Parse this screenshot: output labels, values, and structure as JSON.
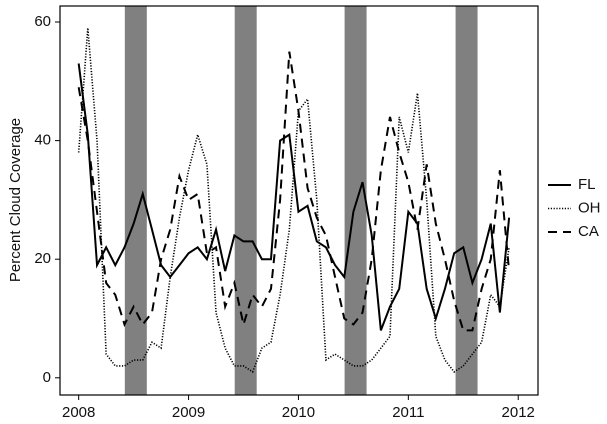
{
  "chart_data": {
    "type": "line",
    "y_label": "Percent Cloud Coverage",
    "x": [
      2008,
      2008.083,
      2008.167,
      2008.25,
      2008.333,
      2008.417,
      2008.5,
      2008.583,
      2008.667,
      2008.75,
      2008.833,
      2008.917,
      2009,
      2009.083,
      2009.167,
      2009.25,
      2009.333,
      2009.417,
      2009.5,
      2009.583,
      2009.667,
      2009.75,
      2009.833,
      2009.917,
      2010,
      2010.083,
      2010.167,
      2010.25,
      2010.333,
      2010.417,
      2010.5,
      2010.583,
      2010.667,
      2010.75,
      2010.833,
      2010.917,
      2011,
      2011.083,
      2011.167,
      2011.25,
      2011.333,
      2011.417,
      2011.5,
      2011.583,
      2011.667,
      2011.75,
      2011.833,
      2011.917
    ],
    "series": [
      {
        "name": "FL",
        "color": "#000000",
        "dash": "solid",
        "values": [
          53,
          41,
          19,
          22,
          19,
          22,
          26,
          31,
          25,
          19,
          17,
          19,
          21,
          22,
          20,
          25,
          18,
          24,
          23,
          23,
          20,
          20,
          40,
          41,
          28,
          29,
          23,
          22,
          19,
          17,
          28,
          33,
          24,
          8,
          12,
          15,
          28,
          26,
          15,
          10,
          15,
          21,
          22,
          16,
          20,
          26,
          11,
          27
        ]
      },
      {
        "name": "OH",
        "color": "#000000",
        "dash": "dotted",
        "values": [
          38,
          59,
          40,
          4,
          2,
          2,
          3,
          3,
          6,
          5,
          17,
          27,
          35,
          41,
          36,
          11,
          5,
          2,
          2,
          1,
          5,
          6,
          14,
          25,
          45,
          47,
          30,
          3,
          4,
          3,
          2,
          2,
          3,
          5,
          7,
          44,
          38,
          48,
          30,
          7,
          3,
          1,
          2,
          4,
          6,
          14,
          12,
          22
        ]
      },
      {
        "name": "CA",
        "color": "#000000",
        "dash": "dashed",
        "values": [
          49,
          40,
          28,
          16,
          14,
          9,
          12,
          9,
          11,
          20,
          25,
          34,
          30,
          31,
          21,
          22,
          12,
          16,
          9,
          14,
          12,
          15,
          30,
          55,
          45,
          32,
          27,
          24,
          17,
          10,
          9,
          11,
          20,
          35,
          44,
          38,
          33,
          25,
          36,
          26,
          20,
          13,
          8,
          8,
          15,
          20,
          35,
          18
        ]
      }
    ],
    "shaded_regions": [
      [
        2008.42,
        2008.62
      ],
      [
        2009.42,
        2009.62
      ],
      [
        2010.42,
        2010.62
      ],
      [
        2011.43,
        2011.63
      ]
    ],
    "shade_color": "#808080",
    "xlim": [
      2007.83,
      2012.18
    ],
    "xticks": [
      2008,
      2009,
      2010,
      2011,
      2012
    ],
    "ylim": [
      -2.9,
      62.7
    ],
    "yticks": [
      0,
      20,
      40,
      60
    ],
    "grid": false,
    "legend": "right"
  }
}
